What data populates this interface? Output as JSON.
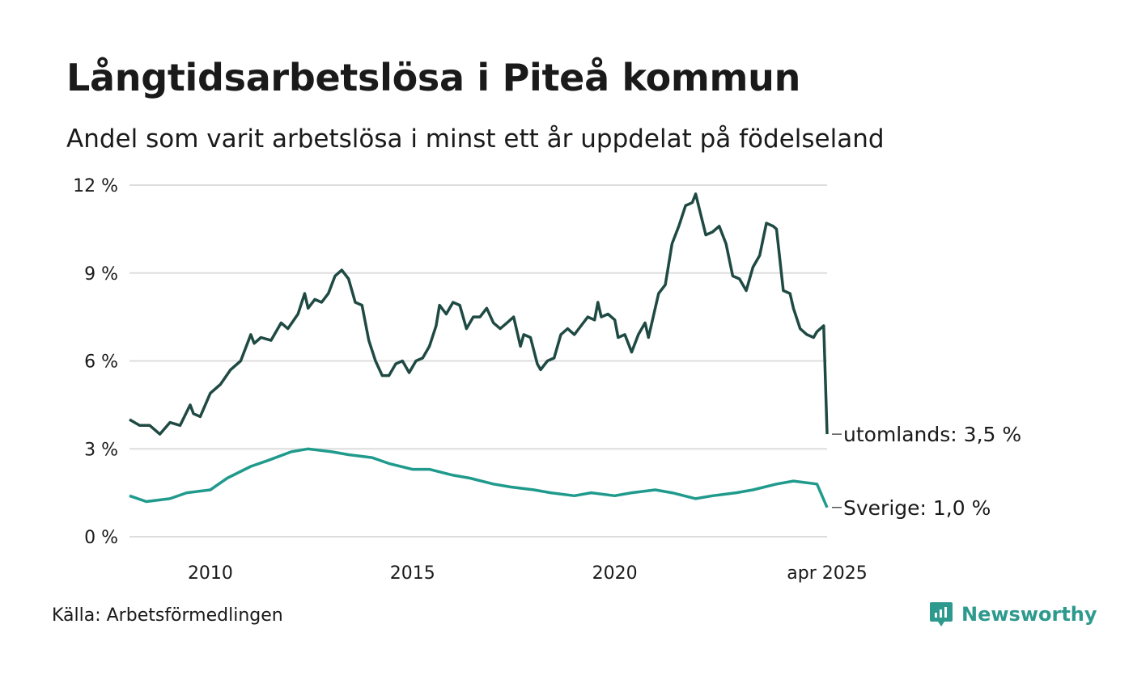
{
  "title": "Långtidsarbetslösa i Piteå kommun",
  "subtitle": "Andel som varit arbetslösa i minst ett år uppdelat på födelseland",
  "source": "Källa: Arbetsförmedlingen",
  "logo": {
    "text": "Newsworthy",
    "icon": "newsworthy-logo-icon",
    "color": "#2e9a8e"
  },
  "colors": {
    "utomlands": "#1f4a43",
    "sverige": "#1f9a8c",
    "grid": "#dddddd",
    "text": "#1a1a1a"
  },
  "chart_data": {
    "type": "line",
    "title": "Långtidsarbetslösa i Piteå kommun",
    "subtitle": "Andel som varit arbetslösa i minst ett år uppdelat på födelseland",
    "ylim": [
      0,
      12
    ],
    "y_ticks": [
      0,
      3,
      6,
      9,
      12
    ],
    "y_tick_labels": [
      "0 %",
      "3 %",
      "6 %",
      "9 %",
      "12 %"
    ],
    "x_range": [
      "2008-01",
      "2025-04"
    ],
    "x_tick_labels": [
      {
        "x": "2010-01",
        "label": "2010"
      },
      {
        "x": "2015-01",
        "label": "2015"
      },
      {
        "x": "2020-01",
        "label": "2020"
      },
      {
        "x": "2025-04",
        "label": "apr 2025"
      }
    ],
    "grid": "horizontal",
    "legend": "line end labels",
    "series": [
      {
        "name": "utomlands",
        "end_label": "utomlands: 3,5 %",
        "color": "#1f4a43",
        "points": [
          [
            "2008-01",
            4.0
          ],
          [
            "2008-04",
            3.8
          ],
          [
            "2008-07",
            3.8
          ],
          [
            "2008-10",
            3.5
          ],
          [
            "2009-01",
            3.9
          ],
          [
            "2009-04",
            3.8
          ],
          [
            "2009-07",
            4.5
          ],
          [
            "2009-08",
            4.2
          ],
          [
            "2009-10",
            4.1
          ],
          [
            "2010-01",
            4.9
          ],
          [
            "2010-04",
            5.2
          ],
          [
            "2010-07",
            5.7
          ],
          [
            "2010-10",
            6.0
          ],
          [
            "2011-01",
            6.9
          ],
          [
            "2011-02",
            6.6
          ],
          [
            "2011-04",
            6.8
          ],
          [
            "2011-07",
            6.7
          ],
          [
            "2011-10",
            7.3
          ],
          [
            "2011-12",
            7.1
          ],
          [
            "2012-03",
            7.6
          ],
          [
            "2012-05",
            8.3
          ],
          [
            "2012-06",
            7.8
          ],
          [
            "2012-08",
            8.1
          ],
          [
            "2012-10",
            8.0
          ],
          [
            "2012-12",
            8.3
          ],
          [
            "2013-02",
            8.9
          ],
          [
            "2013-04",
            9.1
          ],
          [
            "2013-06",
            8.8
          ],
          [
            "2013-08",
            8.0
          ],
          [
            "2013-10",
            7.9
          ],
          [
            "2013-12",
            6.7
          ],
          [
            "2014-02",
            6.0
          ],
          [
            "2014-04",
            5.5
          ],
          [
            "2014-06",
            5.5
          ],
          [
            "2014-08",
            5.9
          ],
          [
            "2014-10",
            6.0
          ],
          [
            "2014-12",
            5.6
          ],
          [
            "2015-02",
            6.0
          ],
          [
            "2015-04",
            6.1
          ],
          [
            "2015-06",
            6.5
          ],
          [
            "2015-08",
            7.2
          ],
          [
            "2015-09",
            7.9
          ],
          [
            "2015-11",
            7.6
          ],
          [
            "2016-01",
            8.0
          ],
          [
            "2016-03",
            7.9
          ],
          [
            "2016-05",
            7.1
          ],
          [
            "2016-07",
            7.5
          ],
          [
            "2016-09",
            7.5
          ],
          [
            "2016-11",
            7.8
          ],
          [
            "2017-01",
            7.3
          ],
          [
            "2017-03",
            7.1
          ],
          [
            "2017-05",
            7.3
          ],
          [
            "2017-07",
            7.5
          ],
          [
            "2017-09",
            6.5
          ],
          [
            "2017-10",
            6.9
          ],
          [
            "2017-12",
            6.8
          ],
          [
            "2018-02",
            5.9
          ],
          [
            "2018-03",
            5.7
          ],
          [
            "2018-05",
            6.0
          ],
          [
            "2018-07",
            6.1
          ],
          [
            "2018-09",
            6.9
          ],
          [
            "2018-11",
            7.1
          ],
          [
            "2019-01",
            6.9
          ],
          [
            "2019-03",
            7.2
          ],
          [
            "2019-05",
            7.5
          ],
          [
            "2019-07",
            7.4
          ],
          [
            "2019-08",
            8.0
          ],
          [
            "2019-09",
            7.5
          ],
          [
            "2019-11",
            7.6
          ],
          [
            "2020-01",
            7.4
          ],
          [
            "2020-02",
            6.8
          ],
          [
            "2020-04",
            6.9
          ],
          [
            "2020-06",
            6.3
          ],
          [
            "2020-08",
            6.9
          ],
          [
            "2020-10",
            7.3
          ],
          [
            "2020-11",
            6.8
          ],
          [
            "2021-02",
            8.3
          ],
          [
            "2021-04",
            8.6
          ],
          [
            "2021-06",
            10.0
          ],
          [
            "2021-08",
            10.6
          ],
          [
            "2021-10",
            11.3
          ],
          [
            "2021-12",
            11.4
          ],
          [
            "2022-01",
            11.7
          ],
          [
            "2022-04",
            10.3
          ],
          [
            "2022-06",
            10.4
          ],
          [
            "2022-08",
            10.6
          ],
          [
            "2022-10",
            10.0
          ],
          [
            "2022-12",
            8.9
          ],
          [
            "2023-02",
            8.8
          ],
          [
            "2023-04",
            8.4
          ],
          [
            "2023-06",
            9.2
          ],
          [
            "2023-08",
            9.6
          ],
          [
            "2023-10",
            10.7
          ],
          [
            "2023-12",
            10.6
          ],
          [
            "2024-01",
            10.5
          ],
          [
            "2024-03",
            8.4
          ],
          [
            "2024-05",
            8.3
          ],
          [
            "2024-06",
            7.8
          ],
          [
            "2024-08",
            7.1
          ],
          [
            "2024-10",
            6.9
          ],
          [
            "2024-12",
            6.8
          ],
          [
            "2025-01",
            7.0
          ],
          [
            "2025-03",
            7.2
          ],
          [
            "2025-04",
            3.5
          ]
        ]
      },
      {
        "name": "Sverige",
        "end_label": "Sverige: 1,0 %",
        "color": "#1f9a8c",
        "points": [
          [
            "2008-01",
            1.4
          ],
          [
            "2008-06",
            1.2
          ],
          [
            "2009-01",
            1.3
          ],
          [
            "2009-06",
            1.5
          ],
          [
            "2010-01",
            1.6
          ],
          [
            "2010-06",
            2.0
          ],
          [
            "2011-01",
            2.4
          ],
          [
            "2011-06",
            2.6
          ],
          [
            "2012-01",
            2.9
          ],
          [
            "2012-06",
            3.0
          ],
          [
            "2013-01",
            2.9
          ],
          [
            "2013-06",
            2.8
          ],
          [
            "2014-01",
            2.7
          ],
          [
            "2014-06",
            2.5
          ],
          [
            "2015-01",
            2.3
          ],
          [
            "2015-06",
            2.3
          ],
          [
            "2016-01",
            2.1
          ],
          [
            "2016-06",
            2.0
          ],
          [
            "2017-01",
            1.8
          ],
          [
            "2017-06",
            1.7
          ],
          [
            "2018-01",
            1.6
          ],
          [
            "2018-06",
            1.5
          ],
          [
            "2019-01",
            1.4
          ],
          [
            "2019-06",
            1.5
          ],
          [
            "2020-01",
            1.4
          ],
          [
            "2020-06",
            1.5
          ],
          [
            "2021-01",
            1.6
          ],
          [
            "2021-06",
            1.5
          ],
          [
            "2022-01",
            1.3
          ],
          [
            "2022-06",
            1.4
          ],
          [
            "2023-01",
            1.5
          ],
          [
            "2023-06",
            1.6
          ],
          [
            "2024-01",
            1.8
          ],
          [
            "2024-06",
            1.9
          ],
          [
            "2025-01",
            1.8
          ],
          [
            "2025-04",
            1.0
          ]
        ]
      }
    ]
  }
}
